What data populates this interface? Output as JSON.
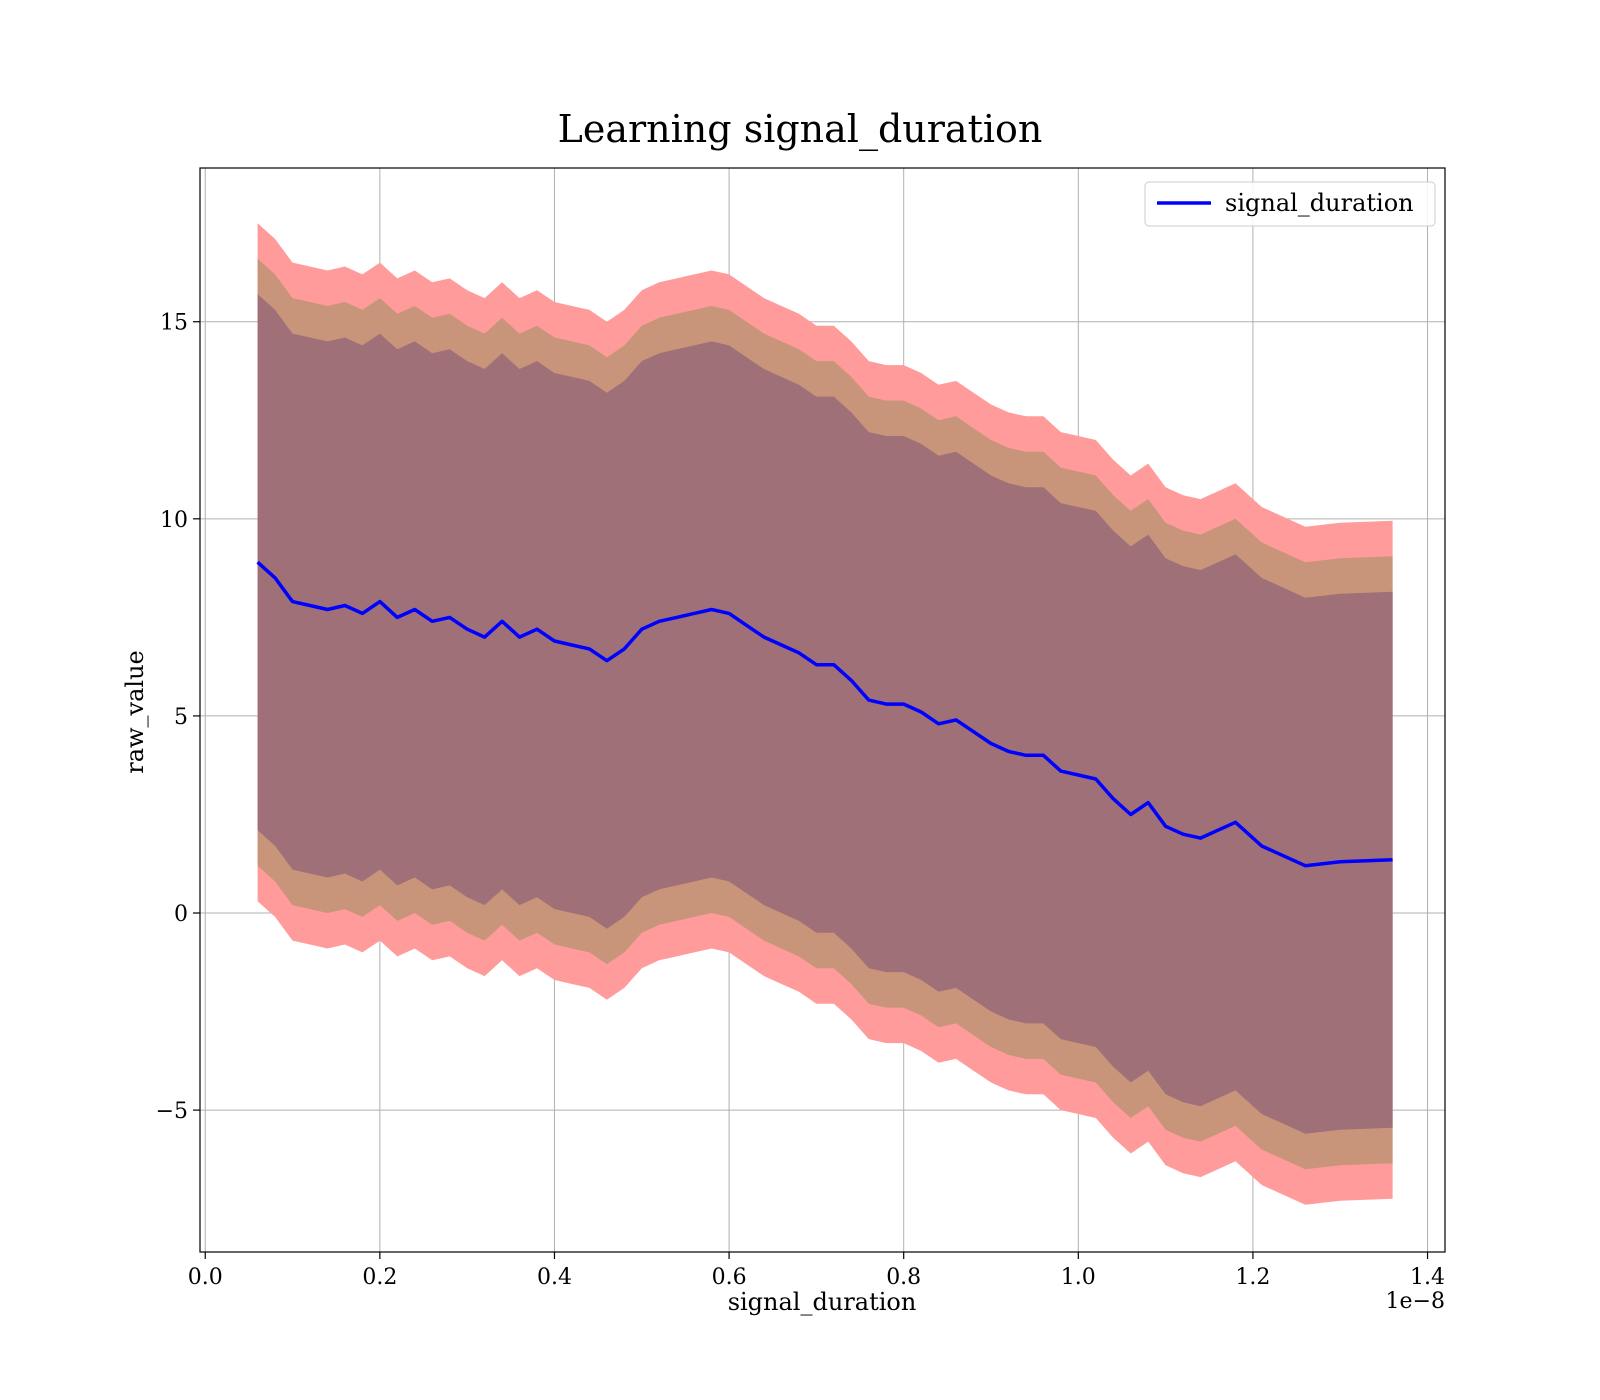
{
  "chart_data": {
    "type": "line",
    "title": "Learning signal_duration",
    "xlabel": "signal_duration",
    "ylabel": "raw_value",
    "x_offset_label": "1e−8",
    "xlim": [
      -0.006,
      1.42
    ],
    "ylim": [
      -8.6,
      18.9
    ],
    "x_ticks": [
      0.0,
      0.2,
      0.4,
      0.6,
      0.8,
      1.0,
      1.2,
      1.4
    ],
    "x_tick_labels": [
      "0.0",
      "0.2",
      "0.4",
      "0.6",
      "0.8",
      "1.0",
      "1.2",
      "1.4"
    ],
    "y_ticks": [
      -5,
      0,
      5,
      10,
      15
    ],
    "y_tick_labels": [
      "−5",
      "0",
      "5",
      "10",
      "15"
    ],
    "grid": true,
    "legend": {
      "placement": "upper-right",
      "entries": [
        "signal_duration"
      ]
    },
    "colors": {
      "line": "#0000ff",
      "band_outer": "#ff9b9b",
      "band_middle": "#c8957a",
      "band_inner": "#a07079"
    },
    "band_half_widths": {
      "inner": 6.8,
      "middle": 7.7,
      "outer": 8.6
    },
    "series": [
      {
        "name": "signal_duration",
        "x": [
          0.06,
          0.07,
          0.08,
          0.09,
          0.1,
          0.12,
          0.14,
          0.16,
          0.18,
          0.2,
          0.22,
          0.24,
          0.26,
          0.28,
          0.3,
          0.32,
          0.34,
          0.36,
          0.38,
          0.4,
          0.42,
          0.44,
          0.46,
          0.48,
          0.5,
          0.52,
          0.54,
          0.56,
          0.58,
          0.6,
          0.62,
          0.64,
          0.66,
          0.68,
          0.7,
          0.72,
          0.74,
          0.76,
          0.78,
          0.8,
          0.82,
          0.84,
          0.86,
          0.88,
          0.9,
          0.92,
          0.94,
          0.96,
          0.98,
          1.0,
          1.02,
          1.04,
          1.06,
          1.08,
          1.1,
          1.12,
          1.14,
          1.16,
          1.18,
          1.21,
          1.26,
          1.3,
          1.36
        ],
        "values": [
          8.9,
          8.7,
          8.5,
          8.2,
          7.9,
          7.8,
          7.7,
          7.8,
          7.6,
          7.9,
          7.5,
          7.7,
          7.4,
          7.5,
          7.2,
          7.0,
          7.4,
          7.0,
          7.2,
          6.9,
          6.8,
          6.7,
          6.4,
          6.7,
          7.2,
          7.4,
          7.5,
          7.6,
          7.7,
          7.6,
          7.3,
          7.0,
          6.8,
          6.6,
          6.3,
          6.3,
          5.9,
          5.4,
          5.3,
          5.3,
          5.1,
          4.8,
          4.9,
          4.6,
          4.3,
          4.1,
          4.0,
          4.0,
          3.6,
          3.5,
          3.4,
          2.9,
          2.5,
          2.8,
          2.2,
          2.0,
          1.9,
          2.1,
          2.3,
          1.7,
          1.2,
          1.3,
          1.35
        ]
      }
    ]
  }
}
